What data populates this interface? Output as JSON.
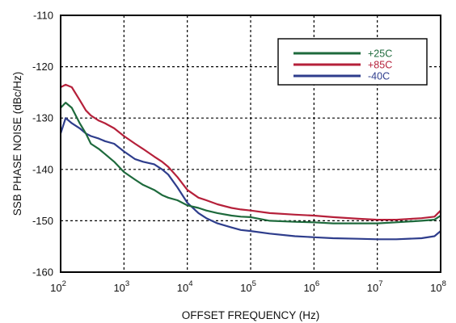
{
  "chart_data": {
    "type": "line",
    "title": "",
    "xlabel": "OFFSET FREQUENCY (Hz)",
    "ylabel": "SSB PHASE NOISE (dBc/Hz)",
    "xscale": "log",
    "xlim": [
      100,
      100000000
    ],
    "ylim": [
      -160,
      -110
    ],
    "grid": true,
    "legend_position": "top-right",
    "x_ticks": [
      {
        "value": 100,
        "base": "10",
        "exp": "2"
      },
      {
        "value": 1000,
        "base": "10",
        "exp": "3"
      },
      {
        "value": 10000,
        "base": "10",
        "exp": "4"
      },
      {
        "value": 100000,
        "base": "10",
        "exp": "5"
      },
      {
        "value": 1000000,
        "base": "10",
        "exp": "6"
      },
      {
        "value": 10000000,
        "base": "10",
        "exp": "7"
      },
      {
        "value": 100000000,
        "base": "10",
        "exp": "8"
      }
    ],
    "y_ticks": [
      {
        "value": -110,
        "label": "-110"
      },
      {
        "value": -120,
        "label": "-120"
      },
      {
        "value": -130,
        "label": "-130"
      },
      {
        "value": -140,
        "label": "-140"
      },
      {
        "value": -150,
        "label": "-150"
      },
      {
        "value": -160,
        "label": "-160"
      }
    ],
    "series": [
      {
        "name": "+25C",
        "color": "#1e6a3c",
        "x": [
          100,
          120,
          150,
          200,
          250,
          300,
          400,
          500,
          700,
          1000,
          1500,
          2000,
          3000,
          4000,
          5000,
          7000,
          10000,
          15000,
          20000,
          30000,
          50000,
          70000,
          100000,
          200000,
          500000,
          1000000,
          2000000,
          5000000,
          10000000,
          20000000,
          50000000,
          80000000,
          100000000
        ],
        "y": [
          -128,
          -127,
          -128,
          -131,
          -133,
          -135,
          -136,
          -137,
          -138.5,
          -140.5,
          -142,
          -143,
          -144,
          -145,
          -145.5,
          -146,
          -147,
          -147.5,
          -148,
          -148.5,
          -149,
          -149.2,
          -149.3,
          -150,
          -150.2,
          -150.3,
          -150.5,
          -150.5,
          -150.5,
          -150.3,
          -150,
          -149.8,
          -149
        ]
      },
      {
        "name": "+85C",
        "color": "#b5203a",
        "x": [
          100,
          120,
          150,
          200,
          250,
          300,
          400,
          500,
          700,
          1000,
          1500,
          2000,
          3000,
          4000,
          5000,
          7000,
          10000,
          15000,
          20000,
          30000,
          50000,
          70000,
          100000,
          200000,
          500000,
          1000000,
          2000000,
          5000000,
          10000000,
          20000000,
          50000000,
          80000000,
          100000000
        ],
        "y": [
          -124,
          -123.5,
          -124,
          -126.5,
          -128.5,
          -129.5,
          -130.5,
          -131,
          -132,
          -133.5,
          -135,
          -136,
          -137.5,
          -138.5,
          -139.5,
          -141.5,
          -144,
          -145.5,
          -146,
          -146.8,
          -147.5,
          -147.8,
          -148,
          -148.5,
          -148.8,
          -149,
          -149.3,
          -149.6,
          -149.8,
          -149.8,
          -149.5,
          -149.2,
          -148
        ]
      },
      {
        "name": "-40C",
        "color": "#2e3d8c",
        "x": [
          100,
          120,
          150,
          200,
          250,
          300,
          400,
          500,
          700,
          1000,
          1500,
          2000,
          3000,
          4000,
          5000,
          7000,
          10000,
          15000,
          20000,
          30000,
          50000,
          70000,
          100000,
          200000,
          500000,
          1000000,
          2000000,
          5000000,
          10000000,
          20000000,
          50000000,
          80000000,
          100000000
        ],
        "y": [
          -133,
          -130,
          -131,
          -132,
          -133,
          -133.5,
          -134,
          -134.5,
          -135,
          -136.5,
          -138,
          -138.5,
          -139,
          -140,
          -141,
          -143.5,
          -146.5,
          -148.5,
          -149.5,
          -150.5,
          -151.3,
          -151.8,
          -152,
          -152.5,
          -153,
          -153.2,
          -153.4,
          -153.5,
          -153.6,
          -153.6,
          -153.4,
          -153,
          -152
        ]
      }
    ]
  }
}
